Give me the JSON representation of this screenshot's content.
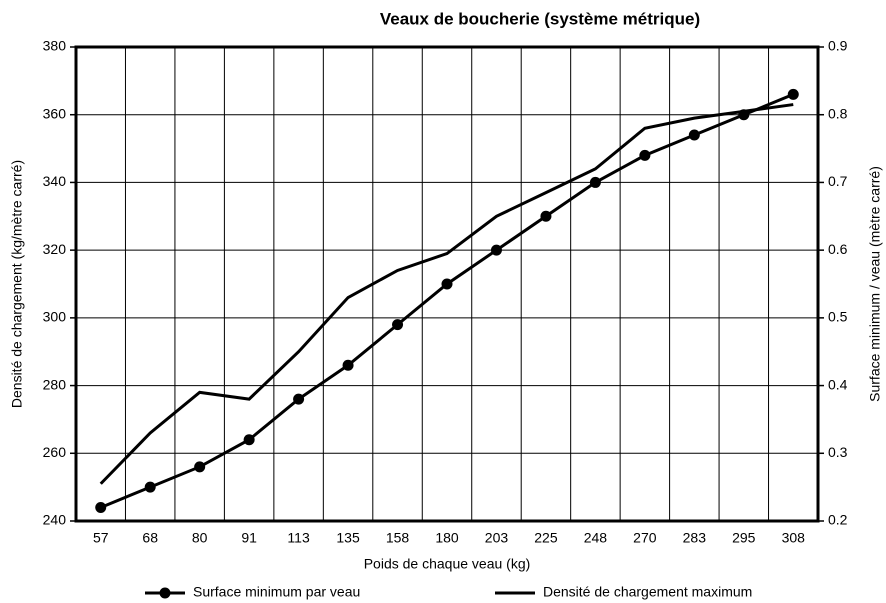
{
  "chart_data": {
    "type": "line",
    "title": "Veaux de boucherie (système métrique)",
    "x_label": "Poids de chaque veau (kg)",
    "y_label": "Densité de chargement (kg/mètre carré)",
    "y2_label": "Surface minimum / veau (mètre carré)",
    "categories": [
      "57",
      "68",
      "80",
      "91",
      "113",
      "135",
      "158",
      "180",
      "203",
      "225",
      "248",
      "270",
      "283",
      "295",
      "308"
    ],
    "series": [
      {
        "name": "Surface minimum par veau",
        "color": "#000000",
        "axis": "y2",
        "marker": "circle",
        "values": [
          0.22,
          0.25,
          0.28,
          0.32,
          0.38,
          0.43,
          0.49,
          0.55,
          0.6,
          0.65,
          0.7,
          0.74,
          0.77,
          0.8,
          0.83
        ]
      },
      {
        "name": "Densité de chargement maximum",
        "color": "#000000",
        "values": [
          251,
          266,
          278,
          276,
          290,
          306,
          314,
          319,
          330,
          337,
          344,
          356,
          359,
          361,
          363
        ]
      }
    ],
    "ylim": [
      240,
      380
    ],
    "yticks": [
      240,
      260,
      280,
      300,
      320,
      340,
      360,
      380
    ],
    "y2lim": [
      0.2,
      0.9
    ],
    "y2ticks": [
      0.2,
      0.3,
      0.4,
      0.5,
      0.6,
      0.7,
      0.8,
      0.9
    ],
    "grid": true,
    "legend": "bottom"
  }
}
